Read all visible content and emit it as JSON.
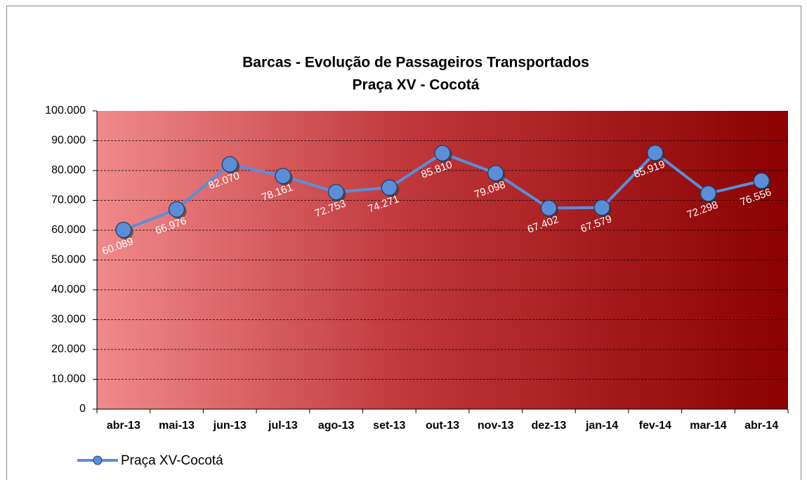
{
  "chart_data": {
    "type": "line",
    "title": "Barcas - Evolução de Passageiros Transportados",
    "subtitle": "Praça XV - Cocotá",
    "categories": [
      "abr-13",
      "mai-13",
      "jun-13",
      "jul-13",
      "ago-13",
      "set-13",
      "out-13",
      "nov-13",
      "dez-13",
      "jan-14",
      "fev-14",
      "mar-14",
      "abr-14"
    ],
    "series": [
      {
        "name": "Praça XV-Cocotá",
        "color": "#5b8ed6",
        "values": [
          60089,
          66976,
          82070,
          78161,
          72753,
          74271,
          85810,
          79098,
          67402,
          67579,
          85919,
          72298,
          76556
        ],
        "value_labels": [
          "60.089",
          "66.976",
          "82.070",
          "78.161",
          "72.753",
          "74.271",
          "85.810",
          "79.098",
          "67.402",
          "67.579",
          "85.919",
          "72.298",
          "76.556"
        ]
      }
    ],
    "ylim": [
      0,
      100000
    ],
    "yticks": [
      0,
      {
        "value": 10000,
        "label": "10.000"
      },
      {
        "value": 20000,
        "label": "20.000"
      },
      {
        "value": 30000,
        "label": "30.000"
      },
      {
        "value": 40000,
        "label": "40.000"
      },
      {
        "value": 50000,
        "label": "50.000"
      },
      {
        "value": 60000,
        "label": "60.000"
      },
      {
        "value": 70000,
        "label": "70.000"
      },
      {
        "value": 80000,
        "label": "80.000"
      },
      {
        "value": 90000,
        "label": "90.000"
      },
      {
        "value": 100000,
        "label": "100.000"
      }
    ],
    "grid": true,
    "legend": "bottom-left"
  }
}
